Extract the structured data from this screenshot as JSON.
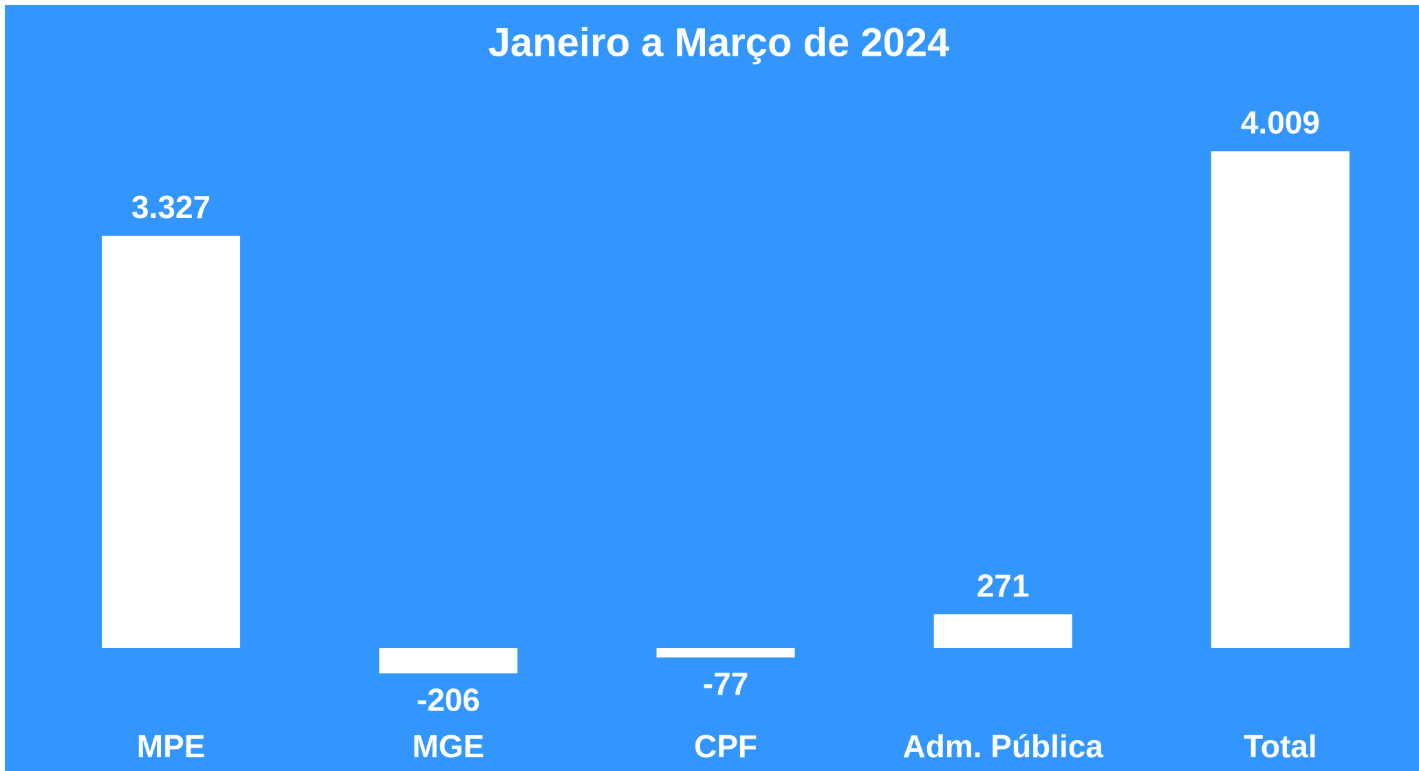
{
  "chart_data": {
    "type": "bar",
    "title": "Janeiro a Março de 2024",
    "categories": [
      "MPE",
      "MGE",
      "CPF",
      "Adm. Pública",
      "Total"
    ],
    "values": [
      3327,
      -206,
      -77,
      271,
      4009
    ],
    "value_labels": [
      "3.327",
      "-206",
      "-77",
      "271",
      "4.009"
    ],
    "color": "#ffffff",
    "background": "#3396fe"
  }
}
